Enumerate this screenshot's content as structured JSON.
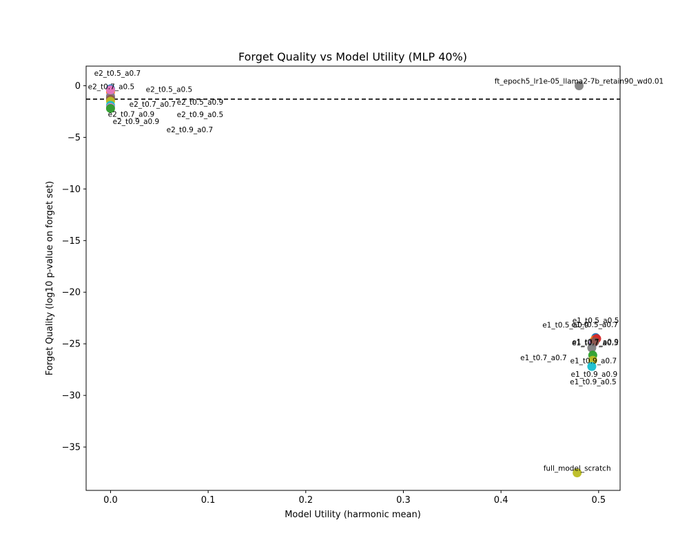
{
  "chart_data": {
    "type": "scatter",
    "title": "Forget Quality vs Model Utility (MLP 40%)",
    "xlabel": "Model Utility (harmonic mean)",
    "ylabel": "Forget Quality (log10 p-value on forget set)",
    "xlim": [
      -0.025,
      0.522
    ],
    "ylim": [
      -39.2,
      1.9
    ],
    "xticks": [
      0.0,
      0.1,
      0.2,
      0.3,
      0.4,
      0.5
    ],
    "xtick_labels": [
      "0.0",
      "0.1",
      "0.2",
      "0.3",
      "0.4",
      "0.5"
    ],
    "yticks": [
      0,
      -5,
      -10,
      -15,
      -20,
      -25,
      -30,
      -35
    ],
    "ytick_labels": [
      "0",
      "−5",
      "−10",
      "−15",
      "−20",
      "−25",
      "−30",
      "−35"
    ],
    "threshold_line": {
      "y": -1.3,
      "style": "dashed",
      "color": "#000000"
    },
    "grid": false,
    "points": [
      {
        "label": "e2_t0.5_a0.7",
        "x": 0.0,
        "y": -0.3,
        "color": "#1f77b4"
      },
      {
        "label": "e2_t0.7_a0.5",
        "x": 0.0,
        "y": -0.6,
        "color": "#ff7f0e"
      },
      {
        "label": "e2_t0.5_a0.5",
        "x": 0.0,
        "y": -1.0,
        "color": "#9467bd"
      },
      {
        "label": "e2_t0.7_a0.7",
        "x": 0.0,
        "y": -1.1,
        "color": "#7f7f7f"
      },
      {
        "label": "e2_t0.5_a0.9",
        "x": 0.0,
        "y": -1.3,
        "color": "#8c564b"
      },
      {
        "label": "e2_t0.9_a0.5",
        "x": 0.0,
        "y": -1.5,
        "color": "#bcbd22"
      },
      {
        "label": "e2_t0.9_a0.9",
        "x": 0.0,
        "y": -1.9,
        "color": "#17becf"
      },
      {
        "label": "e2_t0.9_a0.7",
        "x": 0.0,
        "y": -2.1,
        "color": "#e377c2"
      },
      {
        "label": "e2_t0.7_a0.9",
        "x": 0.0,
        "y": -2.2,
        "color": "#2ca02c"
      },
      {
        "label": "",
        "x": 0.0,
        "y": -0.4,
        "color": "#e377c2"
      },
      {
        "label": "ft_epoch5_lr1e-05_llama2-7b_retain90_wd0.01",
        "x": 0.48,
        "y": 0.0,
        "color": "#7f7f7f"
      },
      {
        "label": "e1_t0.5_a0.5",
        "x": 0.497,
        "y": -24.4,
        "color": "#1f77b4"
      },
      {
        "label": "e1_t0.5_a0.7",
        "x": 0.496,
        "y": -24.6,
        "color": "#ff7f0e"
      },
      {
        "label": "e1_t0.5_a0.9",
        "x": 0.498,
        "y": -24.5,
        "color": "#d62728"
      },
      {
        "label": "e1_t0.7_a0.5",
        "x": 0.495,
        "y": -24.9,
        "color": "#9467bd"
      },
      {
        "label": "e1_t0.7_a0.9",
        "x": 0.496,
        "y": -24.8,
        "color": "#8c564b"
      },
      {
        "label": "e1_t0.7_a0.7",
        "x": 0.493,
        "y": -25.4,
        "color": "#7f7f7f"
      },
      {
        "label": "e1_t0.9_a0.7",
        "x": 0.494,
        "y": -26.1,
        "color": "#2ca02c"
      },
      {
        "label": "e1_t0.9_a0.9",
        "x": 0.494,
        "y": -26.6,
        "color": "#bcbd22"
      },
      {
        "label": "e1_t0.9_a0.5",
        "x": 0.493,
        "y": -27.2,
        "color": "#17becf"
      },
      {
        "label": "full_model_scratch",
        "x": 0.478,
        "y": -37.5,
        "color": "#bcbd22"
      }
    ]
  }
}
